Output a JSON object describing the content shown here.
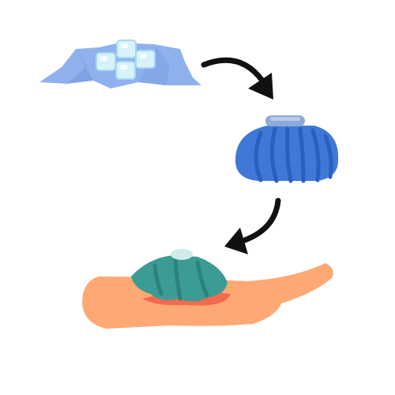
{
  "diagram": {
    "steps": [
      {
        "name": "ice-cubes-on-cloth"
      },
      {
        "name": "ice-bag"
      },
      {
        "name": "ice-bag-on-leg"
      }
    ],
    "arrows": [
      {
        "from": "ice-cubes-on-cloth",
        "to": "ice-bag"
      },
      {
        "from": "ice-bag",
        "to": "ice-bag-on-leg"
      }
    ]
  },
  "colors": {
    "background": "#ffffff",
    "cloth": "#8fb2ef",
    "cloth_shadow": "#7fa2e6",
    "ice_cube": "#d7f2fb",
    "ice_cube_edge": "#a9d8f0",
    "bag_blue": "#3f78d6",
    "bag_blue_dark": "#2a5fc0",
    "bag_cap": "#8fa9d9",
    "arrow": "#111111",
    "leg": "#fea874",
    "leg_redness": "#f46a4e",
    "bag_teal": "#3c9c94",
    "bag_teal_dark": "#2c827b",
    "teal_cap": "#cfeceb"
  }
}
